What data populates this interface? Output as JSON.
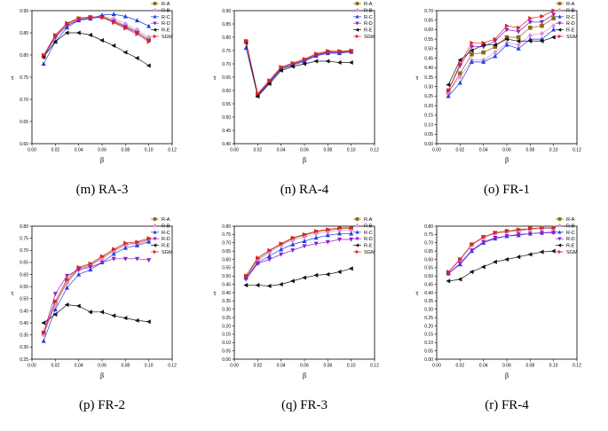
{
  "legend_colors": {
    "R-A": "#8b6b10",
    "R-B": "#e090e0",
    "R-C": "#1f3fe0",
    "R-D": "#8b20c8",
    "R-E": "#111111",
    "SGM": "#e02020"
  },
  "legend_markers": {
    "R-A": "square",
    "R-B": "diamond",
    "R-C": "triangle-up",
    "R-D": "triangle-down",
    "R-E": "triangle-left",
    "SGM": "triangle-right"
  },
  "chart_data": [
    {
      "type": "line",
      "caption": "(m) RA-3",
      "xlabel": "β",
      "ylabel": "τ",
      "xlim": [
        0,
        0.12
      ],
      "ylim": [
        0.6,
        0.9
      ],
      "xticks": [
        "0.00",
        "0.02",
        "0.04",
        "0.06",
        "0.08",
        "0.10",
        "0.12"
      ],
      "yticks": [
        "0.60",
        "0.65",
        "0.70",
        "0.75",
        "0.80",
        "0.85",
        "0.90"
      ],
      "x": [
        0.01,
        0.02,
        0.03,
        0.04,
        0.05,
        0.06,
        0.07,
        0.08,
        0.09,
        0.1
      ],
      "series": [
        {
          "name": "R-A",
          "values": [
            0.797,
            0.843,
            0.87,
            0.882,
            0.885,
            0.886,
            0.878,
            0.865,
            0.853,
            0.835
          ]
        },
        {
          "name": "R-B",
          "values": [
            0.795,
            0.84,
            0.868,
            0.88,
            0.883,
            0.888,
            0.882,
            0.87,
            0.857,
            0.84
          ]
        },
        {
          "name": "R-C",
          "values": [
            0.78,
            0.83,
            0.862,
            0.878,
            0.882,
            0.89,
            0.892,
            0.887,
            0.878,
            0.865
          ]
        },
        {
          "name": "R-D",
          "values": [
            0.795,
            0.84,
            0.866,
            0.879,
            0.883,
            0.885,
            0.875,
            0.863,
            0.85,
            0.832
          ]
        },
        {
          "name": "R-E",
          "values": [
            0.796,
            0.83,
            0.85,
            0.85,
            0.845,
            0.833,
            0.821,
            0.806,
            0.793,
            0.776
          ]
        },
        {
          "name": "SGM",
          "values": [
            0.8,
            0.845,
            0.872,
            0.883,
            0.886,
            0.885,
            0.873,
            0.86,
            0.847,
            0.83
          ]
        }
      ]
    },
    {
      "type": "line",
      "caption": "(n) RA-4",
      "xlabel": "β",
      "ylabel": "τ",
      "xlim": [
        0,
        0.12
      ],
      "ylim": [
        0.4,
        0.9
      ],
      "xticks": [
        "0.00",
        "0.02",
        "0.04",
        "0.06",
        "0.08",
        "0.10",
        "0.12"
      ],
      "yticks": [
        "0.40",
        "0.45",
        "0.50",
        "0.55",
        "0.60",
        "0.65",
        "0.70",
        "0.75",
        "0.80",
        "0.85",
        "0.90"
      ],
      "x": [
        0.01,
        0.02,
        0.03,
        0.04,
        0.05,
        0.06,
        0.07,
        0.08,
        0.09,
        0.1
      ],
      "series": [
        {
          "name": "R-A",
          "values": [
            0.785,
            0.585,
            0.635,
            0.685,
            0.7,
            0.715,
            0.735,
            0.745,
            0.745,
            0.748
          ]
        },
        {
          "name": "R-B",
          "values": [
            0.78,
            0.583,
            0.633,
            0.683,
            0.698,
            0.713,
            0.733,
            0.743,
            0.743,
            0.746
          ]
        },
        {
          "name": "R-C",
          "values": [
            0.76,
            0.58,
            0.63,
            0.68,
            0.695,
            0.71,
            0.73,
            0.74,
            0.74,
            0.745
          ]
        },
        {
          "name": "R-D",
          "values": [
            0.78,
            0.583,
            0.633,
            0.683,
            0.698,
            0.713,
            0.733,
            0.743,
            0.743,
            0.746
          ]
        },
        {
          "name": "R-E",
          "values": [
            0.78,
            0.578,
            0.625,
            0.675,
            0.69,
            0.7,
            0.71,
            0.71,
            0.705,
            0.705
          ]
        },
        {
          "name": "SGM",
          "values": [
            0.785,
            0.588,
            0.638,
            0.688,
            0.703,
            0.718,
            0.738,
            0.748,
            0.748,
            0.75
          ]
        }
      ]
    },
    {
      "type": "line",
      "caption": "(o) FR-1",
      "xlabel": "β",
      "ylabel": "τ",
      "xlim": [
        0,
        0.12
      ],
      "ylim": [
        0,
        0.7
      ],
      "xticks": [
        "0.00",
        "0.02",
        "0.04",
        "0.06",
        "0.08",
        "0.10",
        "0.12"
      ],
      "yticks": [
        "0.00",
        "0.05",
        "0.10",
        "0.15",
        "0.20",
        "0.25",
        "0.30",
        "0.35",
        "0.40",
        "0.45",
        "0.50",
        "0.55",
        "0.60",
        "0.65",
        "0.70"
      ],
      "x": [
        0.01,
        0.02,
        0.03,
        0.04,
        0.05,
        0.06,
        0.07,
        0.08,
        0.09,
        0.1
      ],
      "series": [
        {
          "name": "R-A",
          "values": [
            0.27,
            0.37,
            0.47,
            0.48,
            0.51,
            0.56,
            0.56,
            0.61,
            0.62,
            0.66
          ]
        },
        {
          "name": "R-B",
          "values": [
            0.27,
            0.35,
            0.44,
            0.44,
            0.48,
            0.53,
            0.52,
            0.57,
            0.58,
            0.62
          ]
        },
        {
          "name": "R-C",
          "values": [
            0.25,
            0.32,
            0.43,
            0.43,
            0.46,
            0.52,
            0.5,
            0.55,
            0.55,
            0.6
          ]
        },
        {
          "name": "R-D",
          "values": [
            0.28,
            0.41,
            0.51,
            0.51,
            0.54,
            0.6,
            0.59,
            0.64,
            0.64,
            0.68
          ]
        },
        {
          "name": "R-E",
          "values": [
            0.31,
            0.44,
            0.49,
            0.52,
            0.52,
            0.55,
            0.54,
            0.54,
            0.54,
            0.56
          ]
        },
        {
          "name": "SGM",
          "values": [
            0.28,
            0.42,
            0.53,
            0.53,
            0.55,
            0.62,
            0.61,
            0.66,
            0.67,
            0.7
          ]
        }
      ]
    },
    {
      "type": "line",
      "caption": "(p) FR-2",
      "xlabel": "β",
      "ylabel": "τ",
      "xlim": [
        0,
        0.12
      ],
      "ylim": [
        0.25,
        0.8
      ],
      "xticks": [
        "0.00",
        "0.02",
        "0.04",
        "0.06",
        "0.08",
        "0.10",
        "0.12"
      ],
      "yticks": [
        "0.25",
        "0.30",
        "0.35",
        "0.40",
        "0.45",
        "0.50",
        "0.55",
        "0.60",
        "0.65",
        "0.70",
        "0.75",
        "0.80"
      ],
      "x": [
        0.01,
        0.02,
        0.03,
        0.04,
        0.05,
        0.06,
        0.07,
        0.08,
        0.09,
        0.1
      ],
      "series": [
        {
          "name": "R-A",
          "values": [
            0.355,
            0.48,
            0.57,
            0.625,
            0.64,
            0.67,
            0.7,
            0.725,
            0.73,
            0.745
          ]
        },
        {
          "name": "R-B",
          "values": [
            0.35,
            0.475,
            0.565,
            0.62,
            0.635,
            0.665,
            0.695,
            0.72,
            0.725,
            0.74
          ]
        },
        {
          "name": "R-C",
          "values": [
            0.325,
            0.455,
            0.545,
            0.6,
            0.62,
            0.65,
            0.685,
            0.71,
            0.72,
            0.735
          ]
        },
        {
          "name": "R-D",
          "values": [
            0.36,
            0.52,
            0.595,
            0.62,
            0.63,
            0.65,
            0.665,
            0.665,
            0.665,
            0.66
          ]
        },
        {
          "name": "R-E",
          "values": [
            0.4,
            0.435,
            0.475,
            0.47,
            0.445,
            0.445,
            0.43,
            0.42,
            0.41,
            0.405
          ]
        },
        {
          "name": "SGM",
          "values": [
            0.36,
            0.49,
            0.58,
            0.63,
            0.645,
            0.675,
            0.705,
            0.73,
            0.735,
            0.75
          ]
        }
      ]
    },
    {
      "type": "line",
      "caption": "(q) FR-3",
      "xlabel": "β",
      "ylabel": "τ",
      "xlim": [
        0,
        0.12
      ],
      "ylim": [
        0,
        0.8
      ],
      "xticks": [
        "0.00",
        "0.02",
        "0.04",
        "0.06",
        "0.08",
        "0.10",
        "0.12"
      ],
      "yticks": [
        "0.00",
        "0.05",
        "0.10",
        "0.15",
        "0.20",
        "0.25",
        "0.30",
        "0.35",
        "0.40",
        "0.45",
        "0.50",
        "0.55",
        "0.60",
        "0.65",
        "0.70",
        "0.75",
        "0.80"
      ],
      "x": [
        0.01,
        0.02,
        0.03,
        0.04,
        0.05,
        0.06,
        0.07,
        0.08,
        0.09,
        0.1
      ],
      "series": [
        {
          "name": "R-A",
          "values": [
            0.5,
            0.6,
            0.65,
            0.69,
            0.725,
            0.745,
            0.765,
            0.775,
            0.785,
            0.785
          ]
        },
        {
          "name": "R-B",
          "values": [
            0.49,
            0.59,
            0.64,
            0.685,
            0.715,
            0.735,
            0.755,
            0.765,
            0.775,
            0.775
          ]
        },
        {
          "name": "R-C",
          "values": [
            0.49,
            0.58,
            0.62,
            0.66,
            0.69,
            0.71,
            0.73,
            0.745,
            0.755,
            0.755
          ]
        },
        {
          "name": "R-D",
          "values": [
            0.48,
            0.575,
            0.6,
            0.63,
            0.655,
            0.68,
            0.695,
            0.705,
            0.72,
            0.72
          ]
        },
        {
          "name": "R-E",
          "values": [
            0.445,
            0.445,
            0.44,
            0.45,
            0.47,
            0.49,
            0.505,
            0.51,
            0.525,
            0.545
          ]
        },
        {
          "name": "SGM",
          "values": [
            0.5,
            0.61,
            0.655,
            0.695,
            0.73,
            0.75,
            0.77,
            0.78,
            0.79,
            0.79
          ]
        }
      ]
    },
    {
      "type": "line",
      "caption": "(r) FR-4",
      "xlabel": "β",
      "ylabel": "τ",
      "xlim": [
        0,
        0.12
      ],
      "ylim": [
        0,
        0.8
      ],
      "xticks": [
        "0.00",
        "0.02",
        "0.04",
        "0.06",
        "0.08",
        "0.10",
        "0.12"
      ],
      "yticks": [
        "0.00",
        "0.05",
        "0.10",
        "0.15",
        "0.20",
        "0.25",
        "0.30",
        "0.35",
        "0.40",
        "0.45",
        "0.50",
        "0.55",
        "0.60",
        "0.65",
        "0.70",
        "0.75",
        "0.80"
      ],
      "x": [
        0.01,
        0.02,
        0.03,
        0.04,
        0.05,
        0.06,
        0.07,
        0.08,
        0.09,
        0.1
      ],
      "series": [
        {
          "name": "R-A",
          "values": [
            0.52,
            0.6,
            0.69,
            0.735,
            0.76,
            0.77,
            0.775,
            0.785,
            0.79,
            0.79
          ]
        },
        {
          "name": "R-B",
          "values": [
            0.52,
            0.595,
            0.685,
            0.73,
            0.755,
            0.765,
            0.77,
            0.78,
            0.785,
            0.785
          ]
        },
        {
          "name": "R-C",
          "values": [
            0.515,
            0.57,
            0.65,
            0.7,
            0.725,
            0.74,
            0.745,
            0.755,
            0.76,
            0.765
          ]
        },
        {
          "name": "R-D",
          "values": [
            0.515,
            0.575,
            0.655,
            0.705,
            0.73,
            0.74,
            0.75,
            0.755,
            0.76,
            0.76
          ]
        },
        {
          "name": "R-E",
          "values": [
            0.47,
            0.48,
            0.525,
            0.555,
            0.585,
            0.6,
            0.615,
            0.63,
            0.645,
            0.65
          ]
        },
        {
          "name": "SGM",
          "values": [
            0.525,
            0.6,
            0.69,
            0.735,
            0.76,
            0.77,
            0.78,
            0.785,
            0.79,
            0.79
          ]
        }
      ]
    }
  ]
}
